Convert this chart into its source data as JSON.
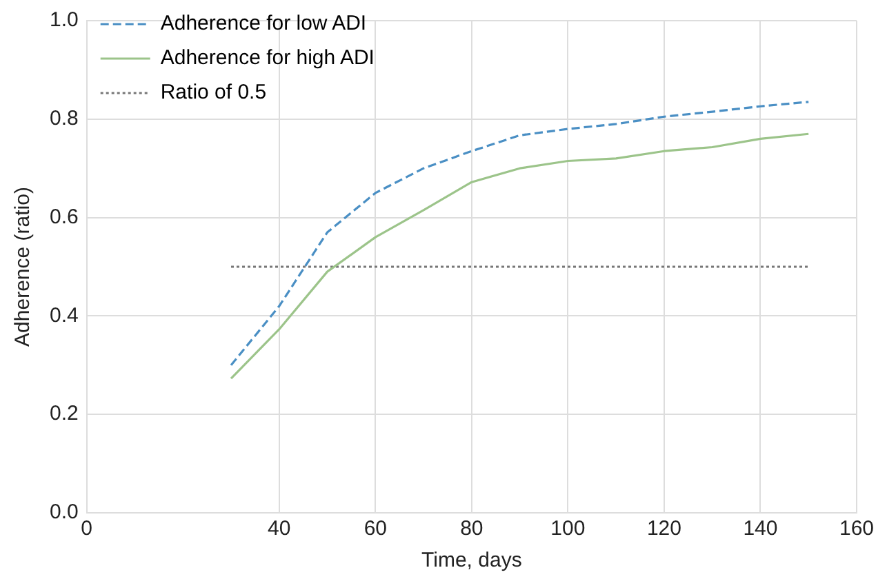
{
  "chart_data": {
    "type": "line",
    "xlabel": "Time, days",
    "ylabel": "Adherence (ratio)",
    "x": [
      30,
      40,
      50,
      60,
      70,
      80,
      90,
      100,
      110,
      120,
      130,
      140,
      150
    ],
    "series": [
      {
        "name": "Adherence for low ADI",
        "color": "#4a8fc4",
        "line_style": "dashed",
        "values": [
          0.3,
          0.42,
          0.57,
          0.65,
          0.7,
          0.735,
          0.767,
          0.78,
          0.79,
          0.805,
          0.815,
          0.826,
          0.835
        ]
      },
      {
        "name": "Adherence for high ADI",
        "color": "#9cc48a",
        "line_style": "solid",
        "values": [
          0.273,
          0.373,
          0.49,
          0.56,
          0.615,
          0.672,
          0.7,
          0.715,
          0.72,
          0.735,
          0.743,
          0.76,
          0.77
        ]
      },
      {
        "name": "Ratio of 0.5",
        "color": "#777777",
        "line_style": "dotted",
        "values": [
          0.5,
          0.5,
          0.5,
          0.5,
          0.5,
          0.5,
          0.5,
          0.5,
          0.5,
          0.5,
          0.5,
          0.5,
          0.5
        ]
      }
    ],
    "xlim": [
      0,
      160
    ],
    "xticks": [
      0,
      40,
      60,
      80,
      100,
      120,
      140,
      160
    ],
    "ylim": [
      0,
      1
    ],
    "yticks": [
      {
        "value": 0,
        "label": "0.0"
      },
      0.2,
      0.4,
      0.6,
      0.8,
      {
        "value": 1,
        "label": "1.0"
      }
    ],
    "grid": true,
    "legend": "top left",
    "marker": "none"
  }
}
